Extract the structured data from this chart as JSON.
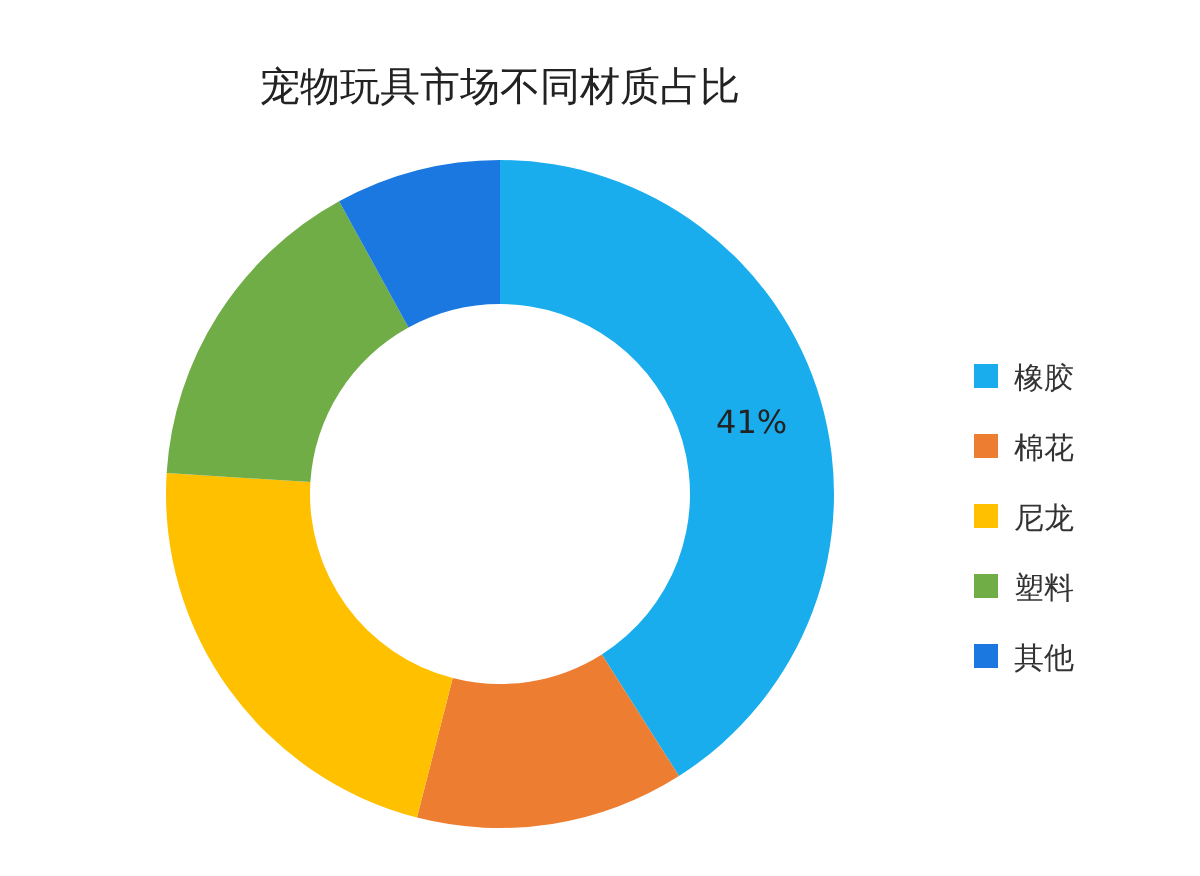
{
  "chart_data": {
    "type": "donut",
    "title": "宠物玩具市场不同材质占比",
    "categories": [
      "橡胶",
      "棉花",
      "尼龙",
      "塑料",
      "其他"
    ],
    "values": [
      41,
      13,
      22,
      16,
      8
    ],
    "colors": [
      "#1aadee",
      "#ed7d31",
      "#ffc000",
      "#70ad47",
      "#1a78e0"
    ],
    "value_labels": [
      "41%",
      null,
      null,
      null,
      null
    ],
    "legend": "right"
  }
}
